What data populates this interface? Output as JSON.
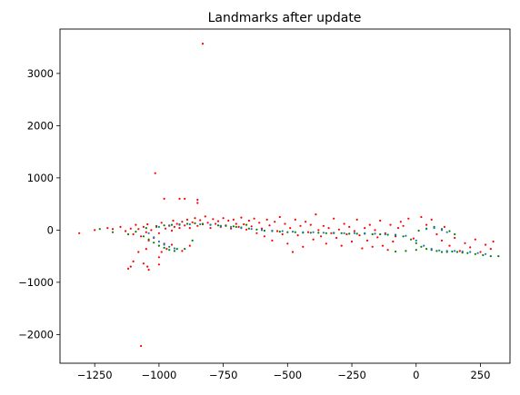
{
  "chart_data": {
    "type": "scatter",
    "title": "Landmarks after update",
    "xlabel": "",
    "ylabel": "",
    "xlim": [
      -1385,
      365
    ],
    "ylim": [
      -2550,
      3850
    ],
    "xticks": [
      -1250,
      -1000,
      -750,
      -500,
      -250,
      0,
      250
    ],
    "xtick_labels": [
      "−1250",
      "−1000",
      "−750",
      "−500",
      "−250",
      "0",
      "250"
    ],
    "yticks": [
      -2000,
      -1000,
      0,
      1000,
      2000,
      3000
    ],
    "ytick_labels": [
      "−2000",
      "−1000",
      "0",
      "1000",
      "2000",
      "3000"
    ],
    "grid": false,
    "legend": "none",
    "colors": {
      "red": "#ff0000",
      "green": "#008000",
      "teal": "#1f77b4"
    },
    "series": [
      {
        "color": "#ff0000",
        "points": [
          [
            -830,
            3570
          ],
          [
            -1015,
            1090
          ],
          [
            -980,
            600
          ],
          [
            -920,
            600
          ],
          [
            -900,
            600
          ],
          [
            -850,
            580
          ],
          [
            -850,
            520
          ],
          [
            -1310,
            -60
          ],
          [
            -1250,
            0
          ],
          [
            -1200,
            40
          ],
          [
            -1180,
            20
          ],
          [
            -1150,
            60
          ],
          [
            -1130,
            -20
          ],
          [
            -1110,
            30
          ],
          [
            -1100,
            -80
          ],
          [
            -1090,
            100
          ],
          [
            -1080,
            20
          ],
          [
            -1070,
            -120
          ],
          [
            -1060,
            60
          ],
          [
            -1050,
            -40
          ],
          [
            -1045,
            110
          ],
          [
            -1040,
            -200
          ],
          [
            -1030,
            0
          ],
          [
            -1020,
            -150
          ],
          [
            -1010,
            80
          ],
          [
            -1000,
            -60
          ],
          [
            -990,
            140
          ],
          [
            -980,
            -260
          ],
          [
            -975,
            30
          ],
          [
            -970,
            -360
          ],
          [
            -960,
            80
          ],
          [
            -950,
            -10
          ],
          [
            -945,
            180
          ],
          [
            -940,
            60
          ],
          [
            -930,
            120
          ],
          [
            -920,
            40
          ],
          [
            -910,
            160
          ],
          [
            -900,
            90
          ],
          [
            -890,
            200
          ],
          [
            -880,
            40
          ],
          [
            -870,
            150
          ],
          [
            -860,
            230
          ],
          [
            -850,
            80
          ],
          [
            -840,
            190
          ],
          [
            -830,
            110
          ],
          [
            -820,
            260
          ],
          [
            -810,
            140
          ],
          [
            -800,
            40
          ],
          [
            -790,
            210
          ],
          [
            -780,
            120
          ],
          [
            -770,
            170
          ],
          [
            -760,
            60
          ],
          [
            -750,
            230
          ],
          [
            -740,
            90
          ],
          [
            -730,
            180
          ],
          [
            -720,
            30
          ],
          [
            -710,
            200
          ],
          [
            -700,
            120
          ],
          [
            -690,
            60
          ],
          [
            -680,
            240
          ],
          [
            -670,
            110
          ],
          [
            -660,
            10
          ],
          [
            -650,
            180
          ],
          [
            -640,
            70
          ],
          [
            -630,
            220
          ],
          [
            -620,
            -60
          ],
          [
            -610,
            140
          ],
          [
            -600,
            30
          ],
          [
            -590,
            -120
          ],
          [
            -580,
            200
          ],
          [
            -570,
            90
          ],
          [
            -560,
            -200
          ],
          [
            -550,
            160
          ],
          [
            -540,
            -20
          ],
          [
            -530,
            250
          ],
          [
            -520,
            -80
          ],
          [
            -510,
            120
          ],
          [
            -500,
            -260
          ],
          [
            -490,
            40
          ],
          [
            -480,
            -420
          ],
          [
            -470,
            200
          ],
          [
            -460,
            -100
          ],
          [
            -450,
            80
          ],
          [
            -440,
            -320
          ],
          [
            -430,
            160
          ],
          [
            -420,
            -40
          ],
          [
            -410,
            100
          ],
          [
            -400,
            -180
          ],
          [
            -390,
            300
          ],
          [
            -380,
            0
          ],
          [
            -370,
            -120
          ],
          [
            -360,
            80
          ],
          [
            -350,
            -260
          ],
          [
            -340,
            40
          ],
          [
            -330,
            -60
          ],
          [
            -320,
            220
          ],
          [
            -310,
            -150
          ],
          [
            -300,
            10
          ],
          [
            -290,
            -300
          ],
          [
            -280,
            120
          ],
          [
            -270,
            -80
          ],
          [
            -260,
            60
          ],
          [
            -250,
            -220
          ],
          [
            -240,
            -20
          ],
          [
            -230,
            200
          ],
          [
            -220,
            -100
          ],
          [
            -210,
            -350
          ],
          [
            -200,
            40
          ],
          [
            -190,
            -200
          ],
          [
            -180,
            100
          ],
          [
            -170,
            -320
          ],
          [
            -160,
            0
          ],
          [
            -150,
            -140
          ],
          [
            -140,
            180
          ],
          [
            -130,
            -300
          ],
          [
            -120,
            -60
          ],
          [
            -110,
            -380
          ],
          [
            -100,
            100
          ],
          [
            -90,
            -220
          ],
          [
            -80,
            -120
          ],
          [
            -70,
            40
          ],
          [
            -60,
            160
          ],
          [
            -50,
            80
          ],
          [
            -30,
            220
          ],
          [
            -10,
            -160
          ],
          [
            20,
            250
          ],
          [
            40,
            100
          ],
          [
            60,
            200
          ],
          [
            80,
            -80
          ],
          [
            100,
            -200
          ],
          [
            110,
            60
          ],
          [
            130,
            -300
          ],
          [
            150,
            -150
          ],
          [
            170,
            -400
          ],
          [
            190,
            -250
          ],
          [
            210,
            -330
          ],
          [
            230,
            -180
          ],
          [
            250,
            -420
          ],
          [
            270,
            -280
          ],
          [
            290,
            -360
          ],
          [
            300,
            -220
          ],
          [
            -1080,
            -420
          ],
          [
            -1100,
            -600
          ],
          [
            -1060,
            -640
          ],
          [
            -1045,
            -700
          ],
          [
            -1110,
            -700
          ],
          [
            -1040,
            -760
          ],
          [
            -1120,
            -740
          ],
          [
            -1000,
            -520
          ],
          [
            -990,
            -420
          ],
          [
            -1070,
            -2220
          ],
          [
            -910,
            -400
          ],
          [
            -880,
            -300
          ],
          [
            -950,
            -280
          ],
          [
            -1000,
            -660
          ],
          [
            -1050,
            -360
          ]
        ]
      },
      {
        "color": "#008000",
        "points": [
          [
            -1230,
            20
          ],
          [
            -1180,
            -40
          ],
          [
            -1120,
            -80
          ],
          [
            -1090,
            -30
          ],
          [
            -1060,
            -120
          ],
          [
            -1040,
            -180
          ],
          [
            -1020,
            -240
          ],
          [
            -1000,
            -300
          ],
          [
            -980,
            -340
          ],
          [
            -960,
            -380
          ],
          [
            -940,
            -400
          ],
          [
            -930,
            -360
          ],
          [
            -1050,
            40
          ],
          [
            -1010,
            60
          ],
          [
            -980,
            90
          ],
          [
            -950,
            100
          ],
          [
            -920,
            110
          ],
          [
            -890,
            120
          ],
          [
            -860,
            130
          ],
          [
            -830,
            120
          ],
          [
            -800,
            100
          ],
          [
            -770,
            90
          ],
          [
            -740,
            80
          ],
          [
            -710,
            70
          ],
          [
            -680,
            50
          ],
          [
            -650,
            30
          ],
          [
            -620,
            10
          ],
          [
            -590,
            -10
          ],
          [
            -560,
            -20
          ],
          [
            -530,
            -30
          ],
          [
            -500,
            -40
          ],
          [
            -470,
            -40
          ],
          [
            -440,
            -50
          ],
          [
            -410,
            -50
          ],
          [
            -380,
            -50
          ],
          [
            -350,
            -60
          ],
          [
            -320,
            -60
          ],
          [
            -290,
            -60
          ],
          [
            -260,
            -70
          ],
          [
            -230,
            -70
          ],
          [
            -200,
            -70
          ],
          [
            -170,
            -80
          ],
          [
            -140,
            -80
          ],
          [
            -110,
            -90
          ],
          [
            -80,
            -100
          ],
          [
            -50,
            -120
          ],
          [
            -20,
            -180
          ],
          [
            0,
            -250
          ],
          [
            20,
            -320
          ],
          [
            40,
            -360
          ],
          [
            60,
            -380
          ],
          [
            80,
            -400
          ],
          [
            100,
            -420
          ],
          [
            120,
            -420
          ],
          [
            140,
            -410
          ],
          [
            160,
            -420
          ],
          [
            180,
            -430
          ],
          [
            200,
            -440
          ],
          [
            230,
            -460
          ],
          [
            260,
            -480
          ],
          [
            290,
            -500
          ],
          [
            320,
            -500
          ],
          [
            0,
            -380
          ],
          [
            -40,
            -400
          ],
          [
            -80,
            -410
          ],
          [
            10,
            -10
          ],
          [
            40,
            30
          ],
          [
            70,
            60
          ],
          [
            100,
            20
          ],
          [
            130,
            -20
          ],
          [
            150,
            -80
          ],
          [
            -900,
            -360
          ],
          [
            -870,
            -200
          ],
          [
            -760,
            80
          ],
          [
            -700,
            60
          ],
          [
            -660,
            100
          ]
        ]
      },
      {
        "color": "#1f77b4",
        "points": [
          [
            -1040,
            -60
          ],
          [
            -1020,
            -140
          ],
          [
            -1000,
            -220
          ],
          [
            -980,
            -280
          ],
          [
            -960,
            -320
          ],
          [
            -940,
            -350
          ],
          [
            -1000,
            60
          ],
          [
            -960,
            90
          ],
          [
            -920,
            100
          ],
          [
            -880,
            110
          ],
          [
            -840,
            110
          ],
          [
            -800,
            100
          ],
          [
            -760,
            80
          ],
          [
            -720,
            60
          ],
          [
            -680,
            40
          ],
          [
            -640,
            20
          ],
          [
            -600,
            0
          ],
          [
            -560,
            -10
          ],
          [
            -520,
            -20
          ],
          [
            -480,
            -30
          ],
          [
            -440,
            -40
          ],
          [
            -400,
            -40
          ],
          [
            -360,
            -50
          ],
          [
            -320,
            -50
          ],
          [
            -280,
            -60
          ],
          [
            -240,
            -60
          ],
          [
            -200,
            -60
          ],
          [
            -160,
            -70
          ],
          [
            -120,
            -80
          ],
          [
            -80,
            -90
          ],
          [
            -40,
            -110
          ],
          [
            0,
            -200
          ],
          [
            30,
            -300
          ],
          [
            60,
            -360
          ],
          [
            90,
            -390
          ],
          [
            120,
            -400
          ],
          [
            150,
            -400
          ],
          [
            180,
            -410
          ],
          [
            210,
            -420
          ],
          [
            240,
            -440
          ],
          [
            270,
            -460
          ],
          [
            40,
            20
          ],
          [
            70,
            40
          ],
          [
            100,
            0
          ],
          [
            120,
            -40
          ]
        ]
      }
    ]
  }
}
